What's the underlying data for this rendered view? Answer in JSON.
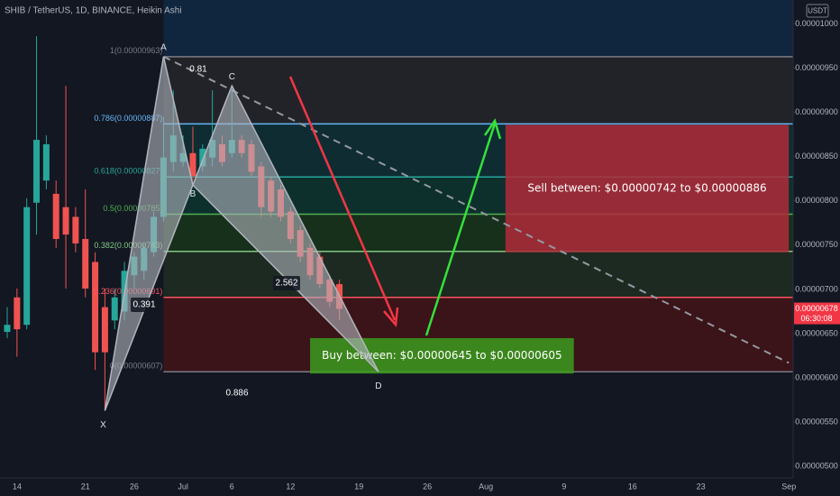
{
  "header": {
    "title": "SHIB / TetherUS, 1D, BINANCE, Heikin Ashi",
    "currency": "USDT"
  },
  "chart_data": {
    "type": "candlestick",
    "categories": [
      null,
      "14",
      null,
      null,
      null,
      null,
      null,
      null,
      "21",
      null,
      null,
      null,
      null,
      "26",
      null,
      null,
      null,
      null,
      "Jul",
      null,
      null,
      null,
      null,
      "6",
      null,
      null,
      null,
      null,
      null,
      "12",
      null,
      null,
      null,
      null,
      null,
      null,
      "19",
      null,
      null,
      null,
      null,
      null,
      null,
      "26",
      null,
      null,
      null,
      null,
      null,
      "Aug",
      null,
      null,
      null,
      null,
      null,
      null,
      null,
      "9",
      null,
      null,
      null,
      null,
      null,
      null,
      "16",
      null,
      null,
      null,
      null,
      null,
      null,
      "23",
      null,
      null,
      null,
      null,
      null,
      null,
      null,
      null,
      "Sep"
    ],
    "open": [
      6.52e-06,
      6.91e-06,
      6.6e-06,
      7.98e-06,
      8.23e-06,
      8.08e-06,
      7.93e-06,
      7.82e-06,
      7.57e-06,
      7.31e-06,
      6.8e-06,
      6.65e-06,
      6.75e-06,
      7.16e-06,
      7.21e-06,
      7.42e-06,
      7.82e-06,
      8.44e-06,
      8.44e-06,
      8.54e-06,
      8.39e-06,
      8.49e-06,
      8.64e-06,
      8.54e-06,
      8.69e-06,
      8.64e-06,
      8.39e-06,
      8.23e-06,
      8.13e-06,
      7.88e-06,
      7.67e-06,
      7.47e-06,
      7.37e-06,
      7.11e-06,
      7.06e-06,
      null,
      null,
      null,
      null,
      null,
      null,
      null,
      null,
      null,
      null,
      null,
      null,
      null,
      null,
      null,
      null,
      null,
      null,
      null,
      null,
      null,
      null,
      null,
      null,
      null,
      null,
      null,
      null,
      null,
      null,
      null,
      null,
      null,
      null,
      null,
      null,
      null,
      null,
      null,
      null,
      null,
      null,
      null,
      null,
      null,
      null
    ],
    "high": [
      6.8e-06,
      7.01e-06,
      8.03e-06,
      9.86e-06,
      8.74e-06,
      8.23e-06,
      9.3e-06,
      7.93e-06,
      8.13e-06,
      7.42e-06,
      7.01e-06,
      7.01e-06,
      7.31e-06,
      7.42e-06,
      7.52e-06,
      7.88e-06,
      8.95e-06,
      9.25e-06,
      8.74e-06,
      8.84e-06,
      8.64e-06,
      9.25e-06,
      8.74e-06,
      9.25e-06,
      8.74e-06,
      8.69e-06,
      8.44e-06,
      8.28e-06,
      8.18e-06,
      7.93e-06,
      7.72e-06,
      7.52e-06,
      7.42e-06,
      7.16e-06,
      7.11e-06,
      null,
      null,
      null,
      null,
      null,
      null,
      null,
      null,
      null,
      null,
      null,
      null,
      null,
      null,
      null,
      null,
      null,
      null,
      null,
      null,
      null,
      null,
      null,
      null,
      null,
      null,
      null,
      null,
      null,
      null,
      null,
      null,
      null,
      null,
      null,
      null,
      null,
      null,
      null,
      null,
      null,
      null,
      null,
      null,
      null,
      null
    ],
    "low": [
      6.45e-06,
      6.24e-06,
      6.55e-06,
      7.62e-06,
      8.13e-06,
      7.47e-06,
      7.01e-06,
      7.42e-06,
      6.91e-06,
      6.09e-06,
      5.63e-06,
      6.55e-06,
      6.65e-06,
      7.01e-06,
      7.11e-06,
      7.37e-06,
      7.77e-06,
      8.33e-06,
      8.39e-06,
      8.23e-06,
      8.33e-06,
      8.39e-06,
      8.39e-06,
      8.49e-06,
      8.49e-06,
      8.28e-06,
      7.82e-06,
      7.82e-06,
      7.77e-06,
      7.52e-06,
      7.31e-06,
      7.11e-06,
      7.01e-06,
      6.8e-06,
      6.65e-06,
      null,
      null,
      null,
      null,
      null,
      null,
      null,
      null,
      null,
      null,
      null,
      null,
      null,
      null,
      null,
      null,
      null,
      null,
      null,
      null,
      null,
      null,
      null,
      null,
      null,
      null,
      null,
      null,
      null,
      null,
      null,
      null,
      null,
      null,
      null,
      null,
      null,
      null,
      null,
      null,
      null,
      null,
      null,
      null,
      null,
      null
    ],
    "close": [
      6.6e-06,
      6.55e-06,
      7.93e-06,
      8.69e-06,
      8.64e-06,
      7.57e-06,
      7.62e-06,
      7.52e-06,
      7.01e-06,
      6.29e-06,
      6.29e-06,
      6.91e-06,
      7.21e-06,
      7.37e-06,
      7.47e-06,
      7.82e-06,
      8.49e-06,
      8.74e-06,
      8.54e-06,
      8.28e-06,
      8.59e-06,
      8.69e-06,
      8.44e-06,
      8.69e-06,
      8.54e-06,
      8.33e-06,
      7.93e-06,
      7.88e-06,
      7.82e-06,
      7.57e-06,
      7.37e-06,
      7.16e-06,
      7.06e-06,
      6.86e-06,
      6.78e-06,
      null,
      null,
      null,
      null,
      null,
      null,
      null,
      null,
      null,
      null,
      null,
      null,
      null,
      null,
      null,
      null,
      null,
      null,
      null,
      null,
      null,
      null,
      null,
      null,
      null,
      null,
      null,
      null,
      null,
      null,
      null,
      null,
      null,
      null,
      null,
      null,
      null,
      null,
      null,
      null,
      null,
      null,
      null,
      null,
      null,
      null
    ],
    "up_color": "#26a69a",
    "down_color": "#ef5350",
    "ylim": [
      4.87e-06,
      1.027e-05
    ],
    "yticks": [
      {
        "value": 5e-06,
        "label": "0.00000500"
      },
      {
        "value": 5.5e-06,
        "label": "0.00000550"
      },
      {
        "value": 6e-06,
        "label": "0.00000600"
      },
      {
        "value": 6.5e-06,
        "label": "0.00000650"
      },
      {
        "value": 7e-06,
        "label": "0.00000700"
      },
      {
        "value": 7.5e-06,
        "label": "0.00000750"
      },
      {
        "value": 8e-06,
        "label": "0.00000800"
      },
      {
        "value": 8.5e-06,
        "label": "0.00000850"
      },
      {
        "value": 9e-06,
        "label": "0.00000900"
      },
      {
        "value": 9.5e-06,
        "label": "0.00000950"
      },
      {
        "value": 1e-05,
        "label": "0.00001000"
      }
    ],
    "top_fill": "#10263f",
    "fib_levels": [
      {
        "label": "1(0.00000963)",
        "value": 9.63e-06,
        "color": "#787b86",
        "fill": "#222328"
      },
      {
        "label": "0.786(0.00000887)",
        "value": 8.87e-06,
        "color": "#64b5f6",
        "fill": "#0f2c33"
      },
      {
        "label": "0.618(0.00000827)",
        "value": 8.27e-06,
        "color": "#26a69a",
        "fill": "#0d302d"
      },
      {
        "label": "0.5(0.00000785)",
        "value": 7.85e-06,
        "color": "#4caf50",
        "fill": "#16301b"
      },
      {
        "label": "0.382(0.00000743)",
        "value": 7.43e-06,
        "color": "#81c784",
        "fill": "#1d2a21"
      },
      {
        "label": "0.236(0.00000691)",
        "value": 6.91e-06,
        "color": "#f7525f",
        "fill": "#3a1418"
      },
      {
        "label": "0(0.00000607)",
        "value": 6.07e-06,
        "color": "#787b86",
        "fill": null
      }
    ],
    "pattern": {
      "color": "#b2b5be",
      "points": [
        {
          "name": "X",
          "index": 10,
          "value": 5.63e-06
        },
        {
          "name": "A",
          "index": 16,
          "value": 9.63e-06
        },
        {
          "name": "B",
          "index": 19,
          "value": 8.18e-06
        },
        {
          "name": "C",
          "index": 23,
          "value": 9.3e-06
        },
        {
          "name": "D",
          "index": 38,
          "value": 6.07e-06
        }
      ],
      "ratios": [
        "0.81",
        "0.391",
        "2.562",
        "0.886"
      ]
    },
    "trend_line": {
      "index": [
        16,
        80
      ],
      "values": [
        9.63e-06,
        6.17e-06
      ],
      "color": "#9598a1"
    },
    "zones": [
      {
        "label": "Sell between: $0.00000742 to $0.00000886",
        "low": 7.42e-06,
        "high": 8.86e-06,
        "start": 51,
        "end": 80,
        "color": "#b02a3a"
      },
      {
        "label": "Buy between: $0.00000645 to $0.00000605",
        "low": 6.05e-06,
        "high": 6.45e-06,
        "start": 31,
        "end": 58,
        "color": "#3c9a1f"
      }
    ],
    "last_price": {
      "value": 6.78e-06,
      "countdown": "06:30:08",
      "color": "#f23645"
    }
  }
}
